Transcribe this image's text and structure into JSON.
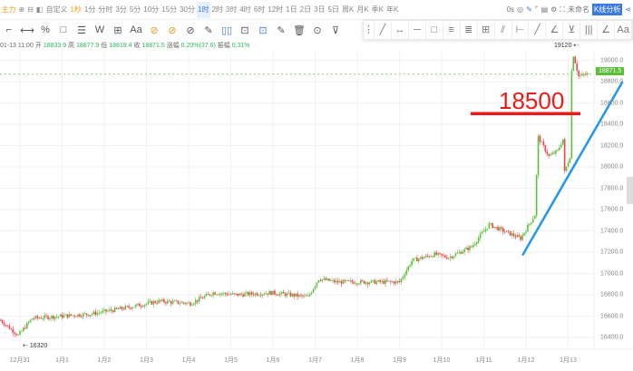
{
  "toolbar": {
    "main_tab": "主力",
    "custom": "自定义",
    "periods": [
      "1秒",
      "1分",
      "分时",
      "3分",
      "5分",
      "10分",
      "15分",
      "30分",
      "1时",
      "2时",
      "3时",
      "4时",
      "6时",
      "12时",
      "1日",
      "2日",
      "3日",
      "5日",
      "周K",
      "月K",
      "季K",
      "年K"
    ],
    "selected_period": "1时",
    "countdown": "0s",
    "unnamed": "未命名",
    "k_analysis": "K线分析"
  },
  "draw_tools": [
    "⌐",
    "⟷",
    "%",
    "□",
    "☰",
    "W",
    "⊞",
    "Aa",
    "⊘",
    "⊘",
    "⊘",
    "✎",
    "▯▯",
    "⊡",
    "⊡",
    "✎",
    "🗑",
    "⊙",
    "⊽"
  ],
  "float_tools": [
    "⋮",
    "╱",
    "↔",
    "─",
    "□",
    "≡",
    "≣",
    "⊞",
    "⫽",
    "⊢",
    "╱",
    "∠",
    "⊻",
    "|||",
    "∠",
    "Aa"
  ],
  "info": {
    "time": "01-13 11:00",
    "open_label": "开",
    "open": "18833.9",
    "high_label": "高",
    "high": "18877.9",
    "low_label": "低",
    "low": "18819.4",
    "close_label": "收",
    "close": "18871.5",
    "change_label": "涨幅",
    "change": "0.20%(37.6)",
    "amp_label": "振幅",
    "amp": "0.31%"
  },
  "chart_data": {
    "type": "candlestick",
    "timeframe": "1h",
    "x_ticks": [
      "12月31",
      "1月1",
      "1月2",
      "1月3",
      "1月4",
      "1月5",
      "1月6",
      "1月7",
      "1月8",
      "1月9",
      "1月10",
      "1月11",
      "1月12",
      "1月13"
    ],
    "y_ticks": [
      "19000.0",
      "18800.0",
      "18600.0",
      "18400.0",
      "18200.0",
      "18000.0",
      "17800.0",
      "17600.0",
      "17400.0",
      "17200.0",
      "17000.0",
      "16800.0",
      "16600.0",
      "16400.0"
    ],
    "ylim": [
      16250,
      19150
    ],
    "last_price": "18871.5",
    "high_marker": "19120",
    "low_marker": "16320",
    "up_color": "#5cbf3a",
    "down_color": "#f0414a",
    "price_path": [
      {
        "t": "12-30 13:00",
        "v": 16560
      },
      {
        "t": "12-30 23:00",
        "v": 16420
      },
      {
        "t": "12-31 07:00",
        "v": 16580
      },
      {
        "t": "01-01 16:00",
        "v": 16620
      },
      {
        "t": "01-02 13:00",
        "v": 16680
      },
      {
        "t": "01-03 07:00",
        "v": 16740
      },
      {
        "t": "01-04 01:00",
        "v": 16720
      },
      {
        "t": "01-04 14:00",
        "v": 16820
      },
      {
        "t": "01-05 03:00",
        "v": 16800
      },
      {
        "t": "01-05 23:00",
        "v": 16820
      },
      {
        "t": "01-06 20:00",
        "v": 16780
      },
      {
        "t": "01-07 02:00",
        "v": 16950
      },
      {
        "t": "01-07 12:00",
        "v": 16920
      },
      {
        "t": "01-09 00:00",
        "v": 16920
      },
      {
        "t": "01-09 07:00",
        "v": 17120
      },
      {
        "t": "01-09 20:00",
        "v": 17180
      },
      {
        "t": "01-10 04:00",
        "v": 17150
      },
      {
        "t": "01-10 17:00",
        "v": 17250
      },
      {
        "t": "01-11 03:00",
        "v": 17460
      },
      {
        "t": "01-11 11:00",
        "v": 17400
      },
      {
        "t": "01-11 21:00",
        "v": 17330
      },
      {
        "t": "01-12 05:00",
        "v": 17550
      },
      {
        "t": "01-12 07:00",
        "v": 18280
      },
      {
        "t": "01-12 13:00",
        "v": 18100
      },
      {
        "t": "01-12 18:00",
        "v": 18150
      },
      {
        "t": "01-12 21:00",
        "v": 18260
      },
      {
        "t": "01-12 22:00",
        "v": 17950
      },
      {
        "t": "01-13 01:00",
        "v": 18100
      },
      {
        "t": "01-13 02:00",
        "v": 18900
      },
      {
        "t": "01-13 03:00",
        "v": 19050
      },
      {
        "t": "01-13 06:00",
        "v": 18850
      },
      {
        "t": "01-13 11:00",
        "v": 18871.5
      }
    ],
    "annotations": {
      "horizontal_line_value": 18500,
      "horizontal_line_label": "18500",
      "horizontal_line_color": "#f01818",
      "trend_line_color": "#2196f3",
      "trend_line": [
        {
          "t": "01-11 22:00",
          "v": 17170
        },
        {
          "t": "01-14 07:00",
          "v": 18800
        }
      ]
    }
  }
}
